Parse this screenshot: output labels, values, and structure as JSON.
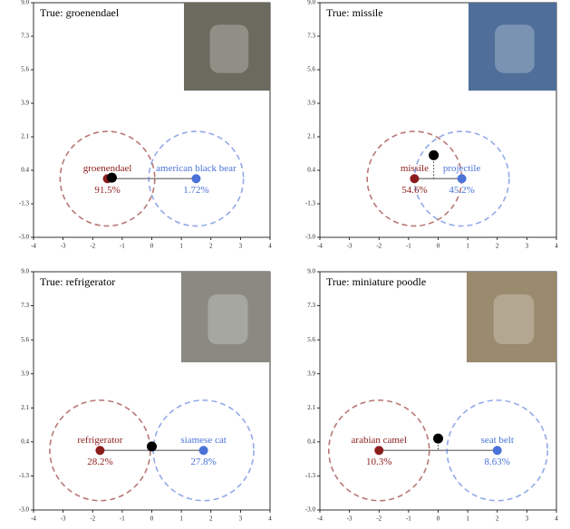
{
  "chart_data": [
    {
      "type": "scatter",
      "title": "True: groenendael",
      "xlim": [
        -4,
        4
      ],
      "ylim": [
        -3,
        9
      ],
      "xticks": [
        -4,
        -3,
        -2,
        -1,
        0,
        1,
        2,
        3,
        4
      ],
      "yticks": [
        {
          "value": -3,
          "label": "-3.0"
        },
        {
          "value": -1.286,
          "label": "-1.3"
        },
        {
          "value": 0.429,
          "label": "0.4"
        },
        {
          "value": 2.143,
          "label": "2.1"
        },
        {
          "value": 3.857,
          "label": "3.9"
        },
        {
          "value": 5.571,
          "label": "5.6"
        },
        {
          "value": 7.286,
          "label": "7.3"
        },
        {
          "value": 9,
          "label": "9.0"
        }
      ],
      "classes": [
        {
          "name": "groenendael",
          "color": "#8b1c1c",
          "x": -1.5,
          "y": 0,
          "radius": 1.6,
          "value": 91.5,
          "value_label": "91.5%"
        },
        {
          "name": "american black bear",
          "color": "#4a72d8",
          "x": 1.5,
          "y": 0,
          "radius": 1.6,
          "value": 1.72,
          "value_label": "1.72%"
        }
      ],
      "prediction": {
        "x": -1.35,
        "y": 0.05,
        "color": "#000000"
      }
    },
    {
      "type": "scatter",
      "title": "True: missile",
      "xlim": [
        -4,
        4
      ],
      "ylim": [
        -3,
        9
      ],
      "xticks": [
        -4,
        -3,
        -2,
        -1,
        0,
        1,
        2,
        3,
        4
      ],
      "yticks": [
        {
          "value": -3,
          "label": "-3.0"
        },
        {
          "value": -1.286,
          "label": "-1.3"
        },
        {
          "value": 0.429,
          "label": "0.4"
        },
        {
          "value": 2.143,
          "label": "2.1"
        },
        {
          "value": 3.857,
          "label": "3.9"
        },
        {
          "value": 5.571,
          "label": "5.6"
        },
        {
          "value": 7.286,
          "label": "7.3"
        },
        {
          "value": 9,
          "label": "9.0"
        }
      ],
      "classes": [
        {
          "name": "missile",
          "color": "#8b1c1c",
          "x": -0.8,
          "y": 0,
          "radius": 1.6,
          "value": 54.6,
          "value_label": "54.6%"
        },
        {
          "name": "projectile",
          "color": "#4a72d8",
          "x": 0.8,
          "y": 0,
          "radius": 1.6,
          "value": 45.2,
          "value_label": "45.2%"
        }
      ],
      "prediction": {
        "x": -0.15,
        "y": 1.2,
        "color": "#000000"
      }
    },
    {
      "type": "scatter",
      "title": "True: refrigerator",
      "xlim": [
        -4,
        4
      ],
      "ylim": [
        -3,
        9
      ],
      "xticks": [
        -4,
        -3,
        -2,
        -1,
        0,
        1,
        2,
        3,
        4
      ],
      "yticks": [
        {
          "value": -3,
          "label": "-3.0"
        },
        {
          "value": -1.286,
          "label": "-1.3"
        },
        {
          "value": 0.429,
          "label": "0.4"
        },
        {
          "value": 2.143,
          "label": "2.1"
        },
        {
          "value": 3.857,
          "label": "3.9"
        },
        {
          "value": 5.571,
          "label": "5.6"
        },
        {
          "value": 7.286,
          "label": "7.3"
        },
        {
          "value": 9,
          "label": "9.0"
        }
      ],
      "classes": [
        {
          "name": "refrigerator",
          "color": "#8b1c1c",
          "x": -1.75,
          "y": 0,
          "radius": 1.7,
          "value": 28.2,
          "value_label": "28.2%"
        },
        {
          "name": "siamese cat",
          "color": "#4a72d8",
          "x": 1.75,
          "y": 0,
          "radius": 1.7,
          "value": 27.8,
          "value_label": "27.8%"
        }
      ],
      "prediction": {
        "x": 0,
        "y": 0.2,
        "color": "#000000"
      }
    },
    {
      "type": "scatter",
      "title": "True: miniature poodle",
      "xlim": [
        -4,
        4
      ],
      "ylim": [
        -3,
        9
      ],
      "xticks": [
        -4,
        -3,
        -2,
        -1,
        0,
        1,
        2,
        3,
        4
      ],
      "yticks": [
        {
          "value": -3,
          "label": "-3.0"
        },
        {
          "value": -1.286,
          "label": "-1.3"
        },
        {
          "value": 0.429,
          "label": "0.4"
        },
        {
          "value": 2.143,
          "label": "2.1"
        },
        {
          "value": 3.857,
          "label": "3.9"
        },
        {
          "value": 5.571,
          "label": "5.6"
        },
        {
          "value": 7.286,
          "label": "7.3"
        },
        {
          "value": 9,
          "label": "9.0"
        }
      ],
      "classes": [
        {
          "name": "arabian camel",
          "color": "#8b1c1c",
          "x": -2,
          "y": 0,
          "radius": 1.7,
          "value": 10.3,
          "value_label": "10.3%"
        },
        {
          "name": "seat belt",
          "color": "#4a72d8",
          "x": 2,
          "y": 0,
          "radius": 1.7,
          "value": 8.63,
          "value_label": "8.63%"
        }
      ],
      "prediction": {
        "x": 0,
        "y": 0.6,
        "color": "#000000"
      }
    }
  ]
}
